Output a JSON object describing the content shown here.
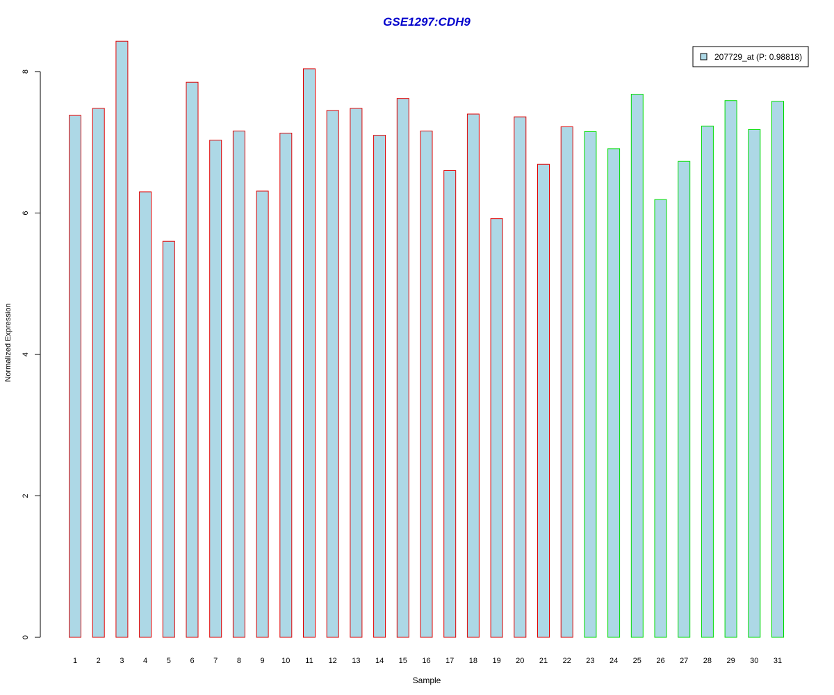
{
  "chart_data": {
    "type": "bar",
    "title": "GSE1297:CDH9",
    "xlabel": "Sample",
    "ylabel": "Normalized Expression",
    "ylim": [
      0,
      8.3
    ],
    "yticks": [
      0,
      2,
      4,
      6,
      8
    ],
    "categories": [
      "1",
      "2",
      "3",
      "4",
      "5",
      "6",
      "7",
      "8",
      "9",
      "10",
      "11",
      "12",
      "13",
      "14",
      "15",
      "16",
      "17",
      "18",
      "19",
      "20",
      "21",
      "22",
      "23",
      "24",
      "25",
      "26",
      "27",
      "28",
      "29",
      "30",
      "31"
    ],
    "values": [
      7.38,
      7.48,
      8.43,
      6.3,
      5.6,
      7.85,
      7.03,
      7.16,
      6.31,
      7.13,
      8.04,
      7.45,
      7.48,
      7.1,
      7.62,
      7.16,
      6.6,
      7.4,
      5.92,
      7.36,
      6.69,
      7.22,
      7.15,
      6.91,
      7.68,
      6.19,
      6.73,
      7.23,
      7.59,
      7.18,
      7.58
    ],
    "group_a_color": "#e00000",
    "group_b_color": "#00dd00",
    "group_b_from_index": 22,
    "fill_color": "#add8e6",
    "grid": false,
    "legend": {
      "placement": "top-right",
      "label": "207729_at (P: 0.98818)",
      "swatch_color": "#add8e6"
    },
    "title_color": "#0000cc"
  }
}
